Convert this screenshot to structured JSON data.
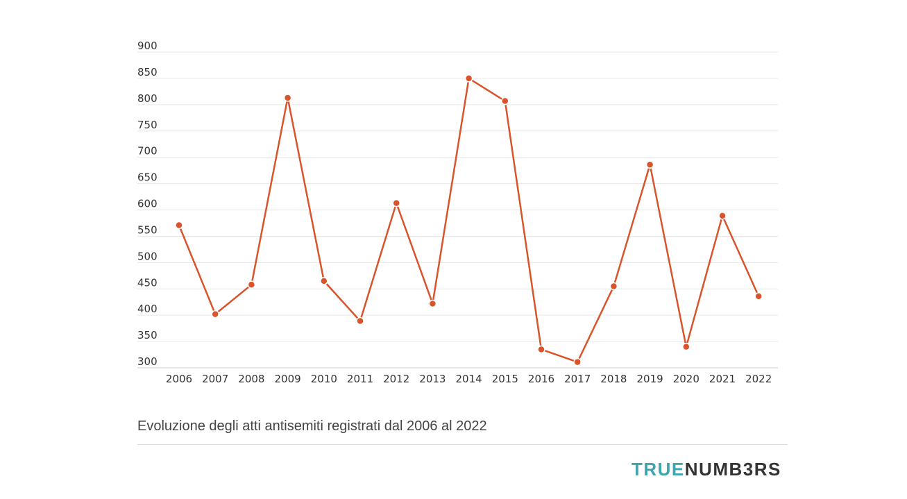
{
  "chart_data": {
    "type": "line",
    "x": [
      "2006",
      "2007",
      "2008",
      "2009",
      "2010",
      "2011",
      "2012",
      "2013",
      "2014",
      "2015",
      "2016",
      "2017",
      "2018",
      "2019",
      "2020",
      "2021",
      "2022"
    ],
    "series": [
      {
        "values": [
          571,
          402,
          458,
          813,
          465,
          389,
          613,
          422,
          850,
          807,
          335,
          311,
          455,
          686,
          340,
          589,
          436
        ]
      }
    ],
    "yticks": [
      900,
      850,
      800,
      750,
      700,
      650,
      600,
      550,
      500,
      450,
      400,
      350,
      300
    ],
    "ylim": [
      300,
      900
    ],
    "grid": true,
    "line_color": "#d9532b",
    "title": "",
    "xlabel": "",
    "ylabel": ""
  },
  "caption": "Evoluzione degli atti antisemiti registrati dal 2006 al 2022",
  "brand": {
    "part1": "TRUE",
    "part2": "NUMB3RS"
  }
}
